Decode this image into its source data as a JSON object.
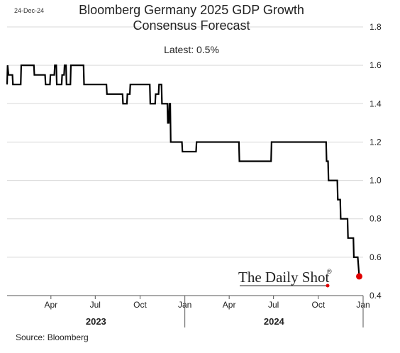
{
  "date_stamp": "24-Dec-24",
  "title_line1": "Bloomberg Germany 2025 GDP Growth",
  "title_line2": "Consensus Forecast",
  "latest_label": "Latest:  0.5%",
  "source": "Source: Bloomberg",
  "watermark": "The Daily Shot",
  "watermark_mark": "®",
  "colors": {
    "line": "#000000",
    "endpoint": "#e00000",
    "grid": "#d9d9d9"
  },
  "chart_data": {
    "type": "line",
    "title": "Bloomberg Germany 2025 GDP Growth Consensus Forecast",
    "xlabel": "",
    "ylabel": "",
    "ylim": [
      0.4,
      1.8
    ],
    "y_ticks": [
      "1.8",
      "1.6",
      "1.4",
      "1.2",
      "1.0",
      "0.8",
      "0.6",
      "0.4"
    ],
    "y_axis_side": "right",
    "grid": "horizontal",
    "x_range": [
      "2023-01-01",
      "2025-01-01"
    ],
    "x_ticks": [
      {
        "label": "Apr",
        "date": "2023-04-01"
      },
      {
        "label": "Jul",
        "date": "2023-07-01"
      },
      {
        "label": "Oct",
        "date": "2023-10-01"
      },
      {
        "label": "Jan",
        "date": "2024-01-01"
      },
      {
        "label": "Apr",
        "date": "2024-04-01"
      },
      {
        "label": "Jul",
        "date": "2024-07-01"
      },
      {
        "label": "Oct",
        "date": "2024-10-01"
      },
      {
        "label": "Jan",
        "date": "2025-01-01"
      }
    ],
    "years": [
      {
        "label": "2023",
        "from": "2023-01-01",
        "to": "2024-01-01"
      },
      {
        "label": "2024",
        "from": "2024-01-01",
        "to": "2025-01-01"
      }
    ],
    "series": [
      {
        "points": [
          [
            "2023-01-01",
            1.5
          ],
          [
            "2023-01-02",
            1.6
          ],
          [
            "2023-01-04",
            1.55
          ],
          [
            "2023-01-12",
            1.55
          ],
          [
            "2023-01-13",
            1.5
          ],
          [
            "2023-01-29",
            1.5
          ],
          [
            "2023-01-30",
            1.6
          ],
          [
            "2023-02-25",
            1.6
          ],
          [
            "2023-02-26",
            1.55
          ],
          [
            "2023-03-20",
            1.55
          ],
          [
            "2023-03-21",
            1.5
          ],
          [
            "2023-03-30",
            1.5
          ],
          [
            "2023-03-31",
            1.55
          ],
          [
            "2023-04-08",
            1.55
          ],
          [
            "2023-04-09",
            1.6
          ],
          [
            "2023-04-12",
            1.6
          ],
          [
            "2023-04-13",
            1.5
          ],
          [
            "2023-04-23",
            1.5
          ],
          [
            "2023-04-24",
            1.55
          ],
          [
            "2023-04-28",
            1.55
          ],
          [
            "2023-04-29",
            1.6
          ],
          [
            "2023-05-02",
            1.6
          ],
          [
            "2023-05-03",
            1.5
          ],
          [
            "2023-05-11",
            1.5
          ],
          [
            "2023-05-12",
            1.6
          ],
          [
            "2023-06-07",
            1.6
          ],
          [
            "2023-06-08",
            1.5
          ],
          [
            "2023-07-24",
            1.5
          ],
          [
            "2023-07-25",
            1.45
          ],
          [
            "2023-08-26",
            1.45
          ],
          [
            "2023-08-27",
            1.4
          ],
          [
            "2023-09-04",
            1.4
          ],
          [
            "2023-09-05",
            1.45
          ],
          [
            "2023-09-10",
            1.45
          ],
          [
            "2023-09-11",
            1.5
          ],
          [
            "2023-10-21",
            1.5
          ],
          [
            "2023-10-22",
            1.4
          ],
          [
            "2023-11-01",
            1.4
          ],
          [
            "2023-11-02",
            1.45
          ],
          [
            "2023-11-08",
            1.45
          ],
          [
            "2023-11-09",
            1.5
          ],
          [
            "2023-11-14",
            1.5
          ],
          [
            "2023-11-15",
            1.4
          ],
          [
            "2023-11-26",
            1.4
          ],
          [
            "2023-11-27",
            1.3
          ],
          [
            "2023-11-29",
            1.3
          ],
          [
            "2023-11-30",
            1.4
          ],
          [
            "2023-12-02",
            1.4
          ],
          [
            "2023-12-03",
            1.2
          ],
          [
            "2023-12-26",
            1.2
          ],
          [
            "2023-12-27",
            1.15
          ],
          [
            "2024-01-24",
            1.15
          ],
          [
            "2024-01-25",
            1.2
          ],
          [
            "2024-04-21",
            1.2
          ],
          [
            "2024-04-22",
            1.1
          ],
          [
            "2024-06-26",
            1.1
          ],
          [
            "2024-06-27",
            1.2
          ],
          [
            "2024-10-17",
            1.2
          ],
          [
            "2024-10-18",
            1.1
          ],
          [
            "2024-10-21",
            1.1
          ],
          [
            "2024-10-22",
            1.0
          ],
          [
            "2024-11-09",
            1.0
          ],
          [
            "2024-11-10",
            0.9
          ],
          [
            "2024-11-15",
            0.9
          ],
          [
            "2024-11-16",
            0.8
          ],
          [
            "2024-11-30",
            0.8
          ],
          [
            "2024-12-01",
            0.7
          ],
          [
            "2024-12-12",
            0.7
          ],
          [
            "2024-12-13",
            0.6
          ],
          [
            "2024-12-21",
            0.6
          ],
          [
            "2024-12-24",
            0.5
          ]
        ]
      }
    ],
    "latest": {
      "date": "2024-12-24",
      "value": 0.5
    }
  }
}
